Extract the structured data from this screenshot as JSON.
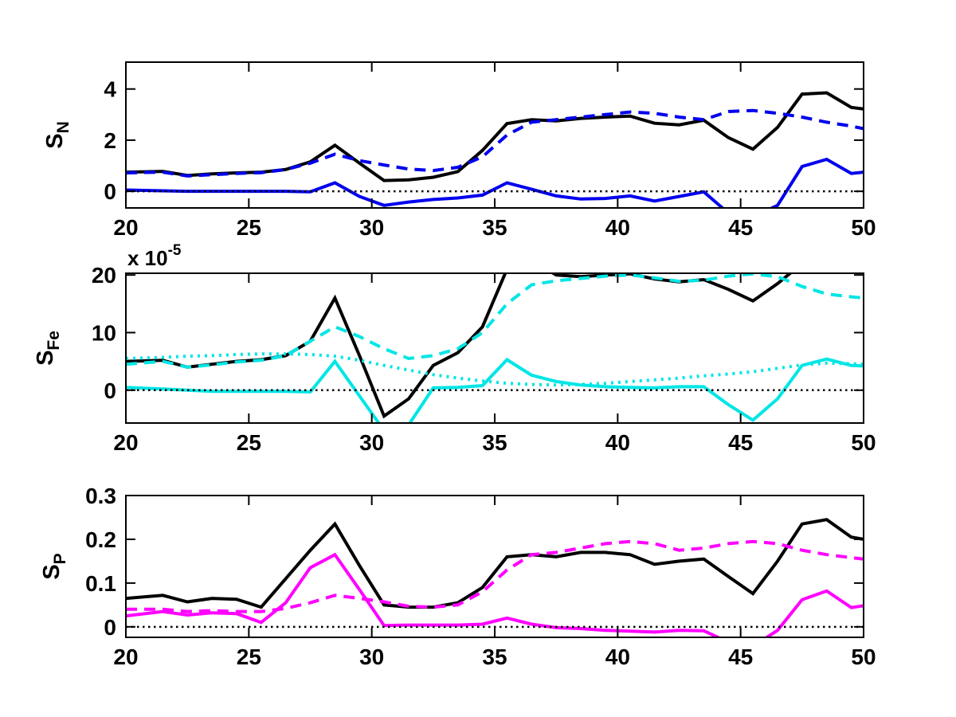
{
  "figure": {
    "background": "#ffffff",
    "axis_color": "#000000"
  },
  "chart_data": [
    {
      "type": "line",
      "id": "sn",
      "ylabel": {
        "main": "S",
        "sub": "N"
      },
      "xlim": [
        20,
        50
      ],
      "ylim": [
        -0.65,
        5.05
      ],
      "x_ticks": [
        20,
        25,
        30,
        35,
        40,
        45,
        50
      ],
      "y_ticks": [
        0,
        2,
        4
      ],
      "grid": false,
      "zero_line": {
        "show": true,
        "color": "#000000",
        "style": "dotted"
      },
      "x": [
        20,
        21.5,
        22.5,
        23.5,
        24.5,
        25.5,
        26.5,
        27.5,
        28.5,
        29.5,
        30.5,
        31.5,
        32.5,
        33.5,
        34.5,
        35.5,
        36.5,
        37.5,
        38.5,
        39.5,
        40.5,
        41.5,
        42.5,
        43.5,
        44.5,
        45.5,
        46.5,
        47.5,
        48.5,
        49.5,
        50
      ],
      "series": [
        {
          "name": "black-solid",
          "color": "#000000",
          "style": "solid",
          "values": [
            0.75,
            0.78,
            0.62,
            0.68,
            0.72,
            0.75,
            0.85,
            1.15,
            1.8,
            1.1,
            0.42,
            0.45,
            0.55,
            0.77,
            1.6,
            2.65,
            2.8,
            2.75,
            2.85,
            2.9,
            2.94,
            2.66,
            2.6,
            2.78,
            2.1,
            1.65,
            2.5,
            3.8,
            3.85,
            3.28,
            3.22
          ]
        },
        {
          "name": "blue-dashed",
          "color": "#0000EE",
          "style": "dashed",
          "values": [
            0.72,
            0.75,
            0.6,
            0.65,
            0.7,
            0.73,
            0.85,
            1.1,
            1.45,
            1.2,
            1.03,
            0.87,
            0.81,
            0.94,
            1.35,
            2.2,
            2.7,
            2.8,
            2.9,
            3.0,
            3.1,
            3.05,
            2.9,
            2.8,
            3.12,
            3.16,
            3.05,
            2.9,
            2.7,
            2.55,
            2.45
          ]
        },
        {
          "name": "blue-solid",
          "color": "#0000EE",
          "style": "solid",
          "values": [
            0.05,
            0.02,
            0,
            0,
            0,
            0,
            0,
            -0.02,
            0.33,
            -0.2,
            -0.55,
            -0.42,
            -0.32,
            -0.26,
            -0.15,
            0.33,
            0.08,
            -0.18,
            -0.3,
            -0.28,
            -0.18,
            -0.38,
            -0.2,
            -0.02,
            -0.85,
            -1.0,
            -0.55,
            0.97,
            1.25,
            0.7,
            0.75
          ]
        }
      ]
    },
    {
      "type": "line",
      "id": "sfe",
      "ylabel": {
        "main": "S",
        "sub": "Fe"
      },
      "scale_label": {
        "prefix": "x 10",
        "exponent": "-5"
      },
      "xlim": [
        20,
        50
      ],
      "ylim": [
        -5.7,
        20.3
      ],
      "x_ticks": [
        20,
        25,
        30,
        35,
        40,
        45,
        50
      ],
      "y_ticks": [
        0,
        10,
        20
      ],
      "grid": false,
      "zero_line": {
        "show": true,
        "color": "#000000",
        "style": "dotted"
      },
      "x": [
        20,
        21.5,
        22.5,
        23.5,
        24.5,
        25.5,
        26.5,
        27.5,
        28.5,
        29.5,
        30.5,
        31.5,
        32.5,
        33.5,
        34.5,
        35.5,
        36.5,
        37.5,
        38.5,
        39.5,
        40.5,
        41.5,
        42.5,
        43.5,
        44.5,
        45.5,
        46.5,
        47.5,
        48.5,
        49.5,
        50
      ],
      "series": [
        {
          "name": "black-solid",
          "color": "#000000",
          "style": "solid",
          "values": [
            5.0,
            5.2,
            4.0,
            4.5,
            5.0,
            5.3,
            6.0,
            8.5,
            16.0,
            6.0,
            -4.5,
            -1.5,
            4.3,
            6.5,
            11.0,
            21.0,
            22.5,
            20.0,
            19.7,
            20.0,
            20.2,
            19.3,
            18.8,
            19.2,
            17.5,
            15.5,
            18.5,
            22.0,
            23.0,
            22.0,
            21.5
          ]
        },
        {
          "name": "cyan-dashed",
          "color": "#00E5E5",
          "style": "dashed",
          "values": [
            4.5,
            5.0,
            4.0,
            4.4,
            4.9,
            5.2,
            6.0,
            8.5,
            11.0,
            9.3,
            7.2,
            5.5,
            6.0,
            7.2,
            10.0,
            15.0,
            18.3,
            19.0,
            19.4,
            19.8,
            20.0,
            19.5,
            18.9,
            19.1,
            19.8,
            20.2,
            19.7,
            18.0,
            16.7,
            16.2,
            16.0
          ]
        },
        {
          "name": "cyan-dotted",
          "color": "#00E5E5",
          "style": "dotted",
          "values": [
            5.5,
            5.7,
            5.9,
            6.0,
            6.2,
            6.3,
            6.3,
            6.2,
            5.9,
            5.2,
            4.3,
            3.5,
            2.7,
            2.1,
            1.6,
            1.2,
            1.0,
            0.9,
            1.0,
            1.2,
            1.5,
            1.8,
            2.1,
            2.5,
            2.8,
            3.2,
            3.8,
            4.4,
            4.7,
            4.6,
            4.5
          ]
        },
        {
          "name": "cyan-solid",
          "color": "#00E5E5",
          "style": "solid",
          "values": [
            0.5,
            0.2,
            0.0,
            -0.2,
            -0.2,
            -0.2,
            -0.2,
            -0.3,
            5.0,
            -1.0,
            -7.0,
            -6.0,
            0.4,
            0.5,
            0.8,
            5.3,
            2.6,
            1.5,
            0.9,
            0.6,
            0.5,
            0.4,
            0.6,
            0.6,
            -2.5,
            -5.2,
            -1.5,
            4.3,
            5.4,
            4.3,
            4.2
          ]
        }
      ]
    },
    {
      "type": "line",
      "id": "sp",
      "ylabel": {
        "main": "S",
        "sub": "P"
      },
      "xlim": [
        20,
        50
      ],
      "ylim": [
        -0.024,
        0.3
      ],
      "x_ticks": [
        20,
        25,
        30,
        35,
        40,
        45,
        50
      ],
      "y_ticks": [
        0,
        0.1,
        0.2,
        0.3
      ],
      "grid": false,
      "zero_line": {
        "show": true,
        "color": "#000000",
        "style": "dotted"
      },
      "x": [
        20,
        21.5,
        22.5,
        23.5,
        24.5,
        25.5,
        26.5,
        27.5,
        28.5,
        29.5,
        30.5,
        31.5,
        32.5,
        33.5,
        34.5,
        35.5,
        36.5,
        37.5,
        38.5,
        39.5,
        40.5,
        41.5,
        42.5,
        43.5,
        44.5,
        45.5,
        46.5,
        47.5,
        48.5,
        49.5,
        50
      ],
      "series": [
        {
          "name": "black-solid",
          "color": "#000000",
          "style": "solid",
          "values": [
            0.065,
            0.072,
            0.057,
            0.065,
            0.063,
            0.045,
            0.11,
            0.175,
            0.235,
            0.14,
            0.05,
            0.045,
            0.045,
            0.055,
            0.09,
            0.16,
            0.165,
            0.16,
            0.17,
            0.17,
            0.165,
            0.143,
            0.15,
            0.155,
            0.115,
            0.076,
            0.15,
            0.235,
            0.245,
            0.205,
            0.2
          ]
        },
        {
          "name": "magenta-dashed",
          "color": "#FF00FF",
          "style": "dashed",
          "values": [
            0.04,
            0.04,
            0.035,
            0.037,
            0.035,
            0.035,
            0.042,
            0.055,
            0.072,
            0.065,
            0.057,
            0.047,
            0.045,
            0.05,
            0.08,
            0.13,
            0.165,
            0.17,
            0.18,
            0.19,
            0.195,
            0.19,
            0.175,
            0.18,
            0.19,
            0.195,
            0.19,
            0.175,
            0.165,
            0.158,
            0.155
          ]
        },
        {
          "name": "magenta-solid",
          "color": "#FF00FF",
          "style": "solid",
          "values": [
            0.025,
            0.035,
            0.027,
            0.032,
            0.03,
            0.01,
            0.055,
            0.135,
            0.165,
            0.085,
            0.003,
            0.004,
            0.004,
            0.004,
            0.006,
            0.02,
            0.006,
            -0.002,
            -0.004,
            -0.008,
            -0.01,
            -0.012,
            -0.008,
            -0.009,
            -0.035,
            -0.045,
            -0.008,
            0.062,
            0.082,
            0.044,
            0.048
          ]
        }
      ]
    }
  ],
  "tick_label_strings": {
    "x": [
      "20",
      "25",
      "30",
      "35",
      "40",
      "45",
      "50"
    ],
    "sn_y": [
      "0",
      "2",
      "4"
    ],
    "sfe_y": [
      "0",
      "10",
      "20"
    ],
    "sp_y": [
      "0",
      "0.1",
      "0.2",
      "0.3"
    ]
  }
}
